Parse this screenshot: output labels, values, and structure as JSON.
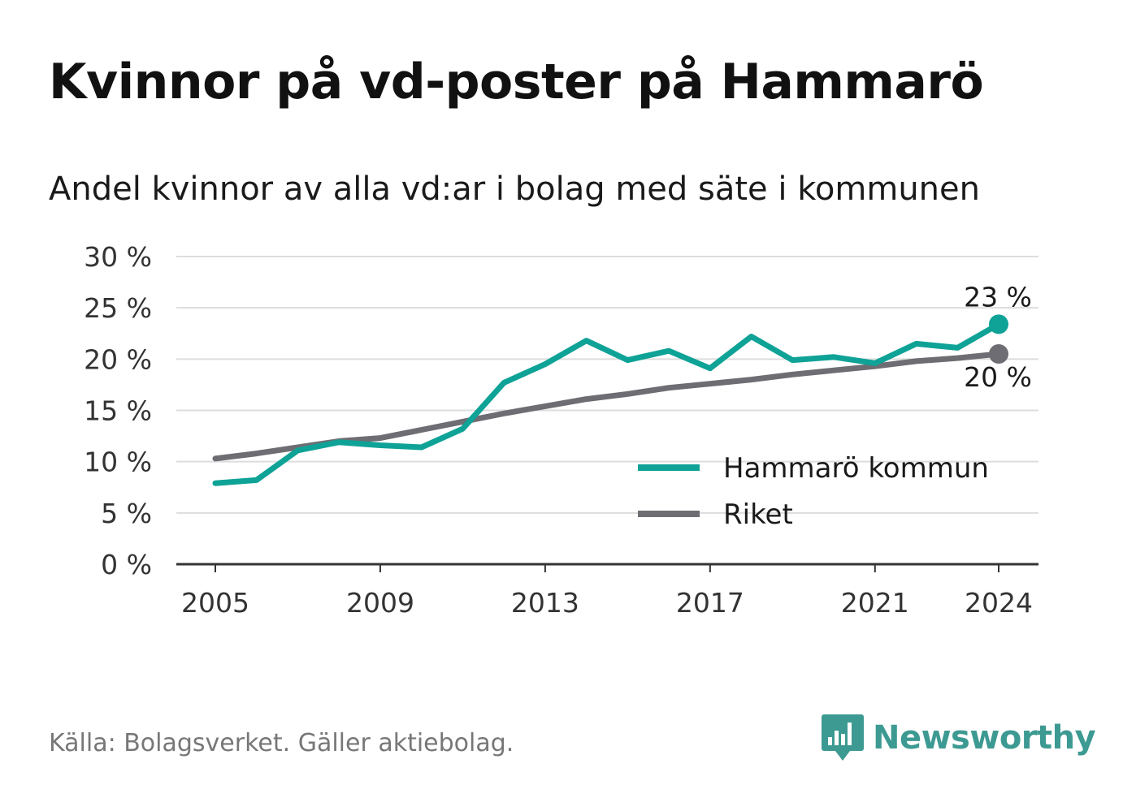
{
  "title": "Kvinnor på vd-poster på Hammarö",
  "subtitle": "Andel kvinnor av alla vd:ar i bolag med säte i kommunen",
  "source": "Källa: Bolagsverket. Gäller aktiebolag.",
  "logo_text": "Newsworthy",
  "colors": {
    "hammaro": "#0fa297",
    "riket": "#6e6d73",
    "grid": "#dddddd",
    "axis": "#333333",
    "logo": "#3d9a92"
  },
  "chart_data": {
    "type": "line",
    "x": [
      2005,
      2006,
      2007,
      2008,
      2009,
      2010,
      2011,
      2012,
      2013,
      2014,
      2015,
      2016,
      2017,
      2018,
      2019,
      2020,
      2021,
      2022,
      2023,
      2024
    ],
    "xlim": [
      2004,
      2025
    ],
    "ylim": [
      0,
      30
    ],
    "y_ticks": [
      0,
      5,
      10,
      15,
      20,
      25,
      30
    ],
    "y_tick_labels": [
      "0 %",
      "5 %",
      "10 %",
      "15 %",
      "20 %",
      "25 %",
      "30 %"
    ],
    "x_ticks": [
      2005,
      2009,
      2013,
      2017,
      2021,
      2024
    ],
    "x_tick_labels": [
      "2005",
      "2009",
      "2013",
      "2017",
      "2021",
      "2024"
    ],
    "grid": true,
    "legend_position": "bottom-right",
    "series": [
      {
        "name": "Hammarö kommun",
        "color": "#0fa297",
        "values": [
          7.9,
          8.2,
          11.1,
          11.9,
          11.6,
          11.4,
          13.2,
          17.7,
          19.5,
          21.8,
          19.9,
          20.8,
          19.1,
          22.2,
          19.9,
          20.2,
          19.6,
          21.5,
          21.1,
          23.4
        ],
        "end_label": "23 %"
      },
      {
        "name": "Riket",
        "color": "#6e6d73",
        "values": [
          10.3,
          10.8,
          11.4,
          12.0,
          12.3,
          13.1,
          13.9,
          14.7,
          15.4,
          16.1,
          16.6,
          17.2,
          17.6,
          18.0,
          18.5,
          18.9,
          19.3,
          19.8,
          20.1,
          20.5
        ],
        "end_label": "20 %"
      }
    ]
  }
}
